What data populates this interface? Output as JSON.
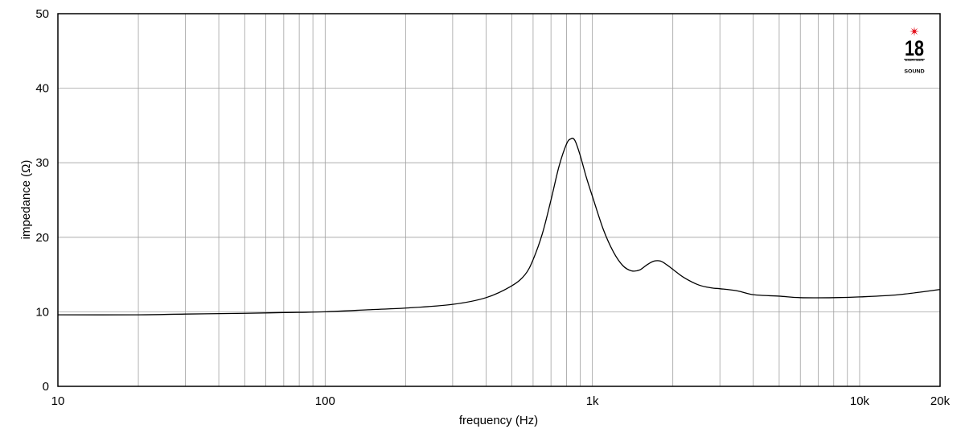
{
  "chart_data": {
    "type": "line",
    "title": "",
    "xlabel": "frequency (Hz)",
    "ylabel": "impedance (Ω)",
    "xscale": "log",
    "xlim": [
      10,
      20000
    ],
    "ylim": [
      0,
      50
    ],
    "grid": true,
    "x_ticks": [
      {
        "value": 10,
        "label": "10"
      },
      {
        "value": 100,
        "label": "100"
      },
      {
        "value": 1000,
        "label": "1k"
      },
      {
        "value": 10000,
        "label": "10k"
      },
      {
        "value": 20000,
        "label": "20k"
      }
    ],
    "y_ticks": [
      {
        "value": 0,
        "label": "0"
      },
      {
        "value": 10,
        "label": "10"
      },
      {
        "value": 20,
        "label": "20"
      },
      {
        "value": 30,
        "label": "30"
      },
      {
        "value": 40,
        "label": "40"
      },
      {
        "value": 50,
        "label": "50"
      }
    ],
    "series": [
      {
        "color": "#000000",
        "x": [
          10,
          20,
          30,
          50,
          70,
          100,
          150,
          200,
          300,
          400,
          500,
          560,
          600,
          650,
          700,
          750,
          800,
          830,
          860,
          900,
          950,
          1000,
          1100,
          1200,
          1300,
          1400,
          1500,
          1600,
          1700,
          1800,
          1900,
          2000,
          2200,
          2500,
          2800,
          3000,
          3500,
          4000,
          5000,
          6000,
          8000,
          10000,
          14000,
          20000
        ],
        "y": [
          9.6,
          9.6,
          9.7,
          9.8,
          9.9,
          10.0,
          10.3,
          10.5,
          11.0,
          11.9,
          13.5,
          15.0,
          17.0,
          20.5,
          25.0,
          29.5,
          32.5,
          33.2,
          33.0,
          31.0,
          28.0,
          25.5,
          21.0,
          18.0,
          16.2,
          15.5,
          15.6,
          16.3,
          16.8,
          16.8,
          16.3,
          15.7,
          14.6,
          13.6,
          13.2,
          13.1,
          12.8,
          12.3,
          12.1,
          11.9,
          11.9,
          12.0,
          12.3,
          13.0
        ]
      }
    ]
  },
  "logo": {
    "number": "18",
    "subtitle": "EIGHTEEN",
    "name": "SOUND",
    "accent_color": "#e30613"
  }
}
